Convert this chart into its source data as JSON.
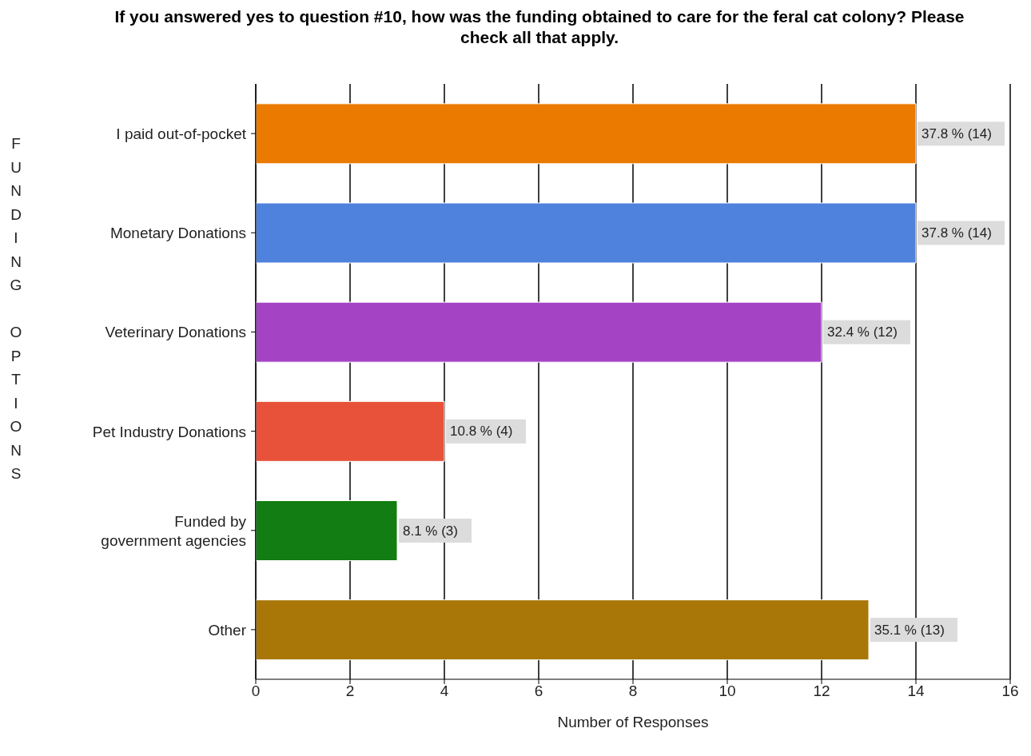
{
  "chart_data": {
    "type": "bar",
    "orientation": "horizontal",
    "title": "If you answered yes to question #10, how was the funding obtained to care for the feral cat colony? Please check all that apply.",
    "xlabel": "Number of Responses",
    "ylabel": "FUNDING OPTIONS",
    "categories": [
      "I paid out-of-pocket",
      "Monetary Donations",
      "Veterinary Donations",
      "Pet Industry Donations",
      "Funded by\ngovernment agencies",
      "Other"
    ],
    "values": [
      14,
      14,
      12,
      4,
      3,
      13
    ],
    "colors": [
      "#ea7a00",
      "#4f82dc",
      "#a443c4",
      "#e8523a",
      "#127d12",
      "#a87708"
    ],
    "value_labels": [
      "37.8 % (14)",
      "37.8 % (14)",
      "32.4 % (12)",
      "10.8 % (4)",
      "8.1 % (3)",
      "35.1 % (13)"
    ],
    "xlim": [
      0,
      16
    ],
    "xticks": [
      0,
      2,
      4,
      6,
      8,
      10,
      12,
      14,
      16
    ],
    "grid": "x"
  }
}
